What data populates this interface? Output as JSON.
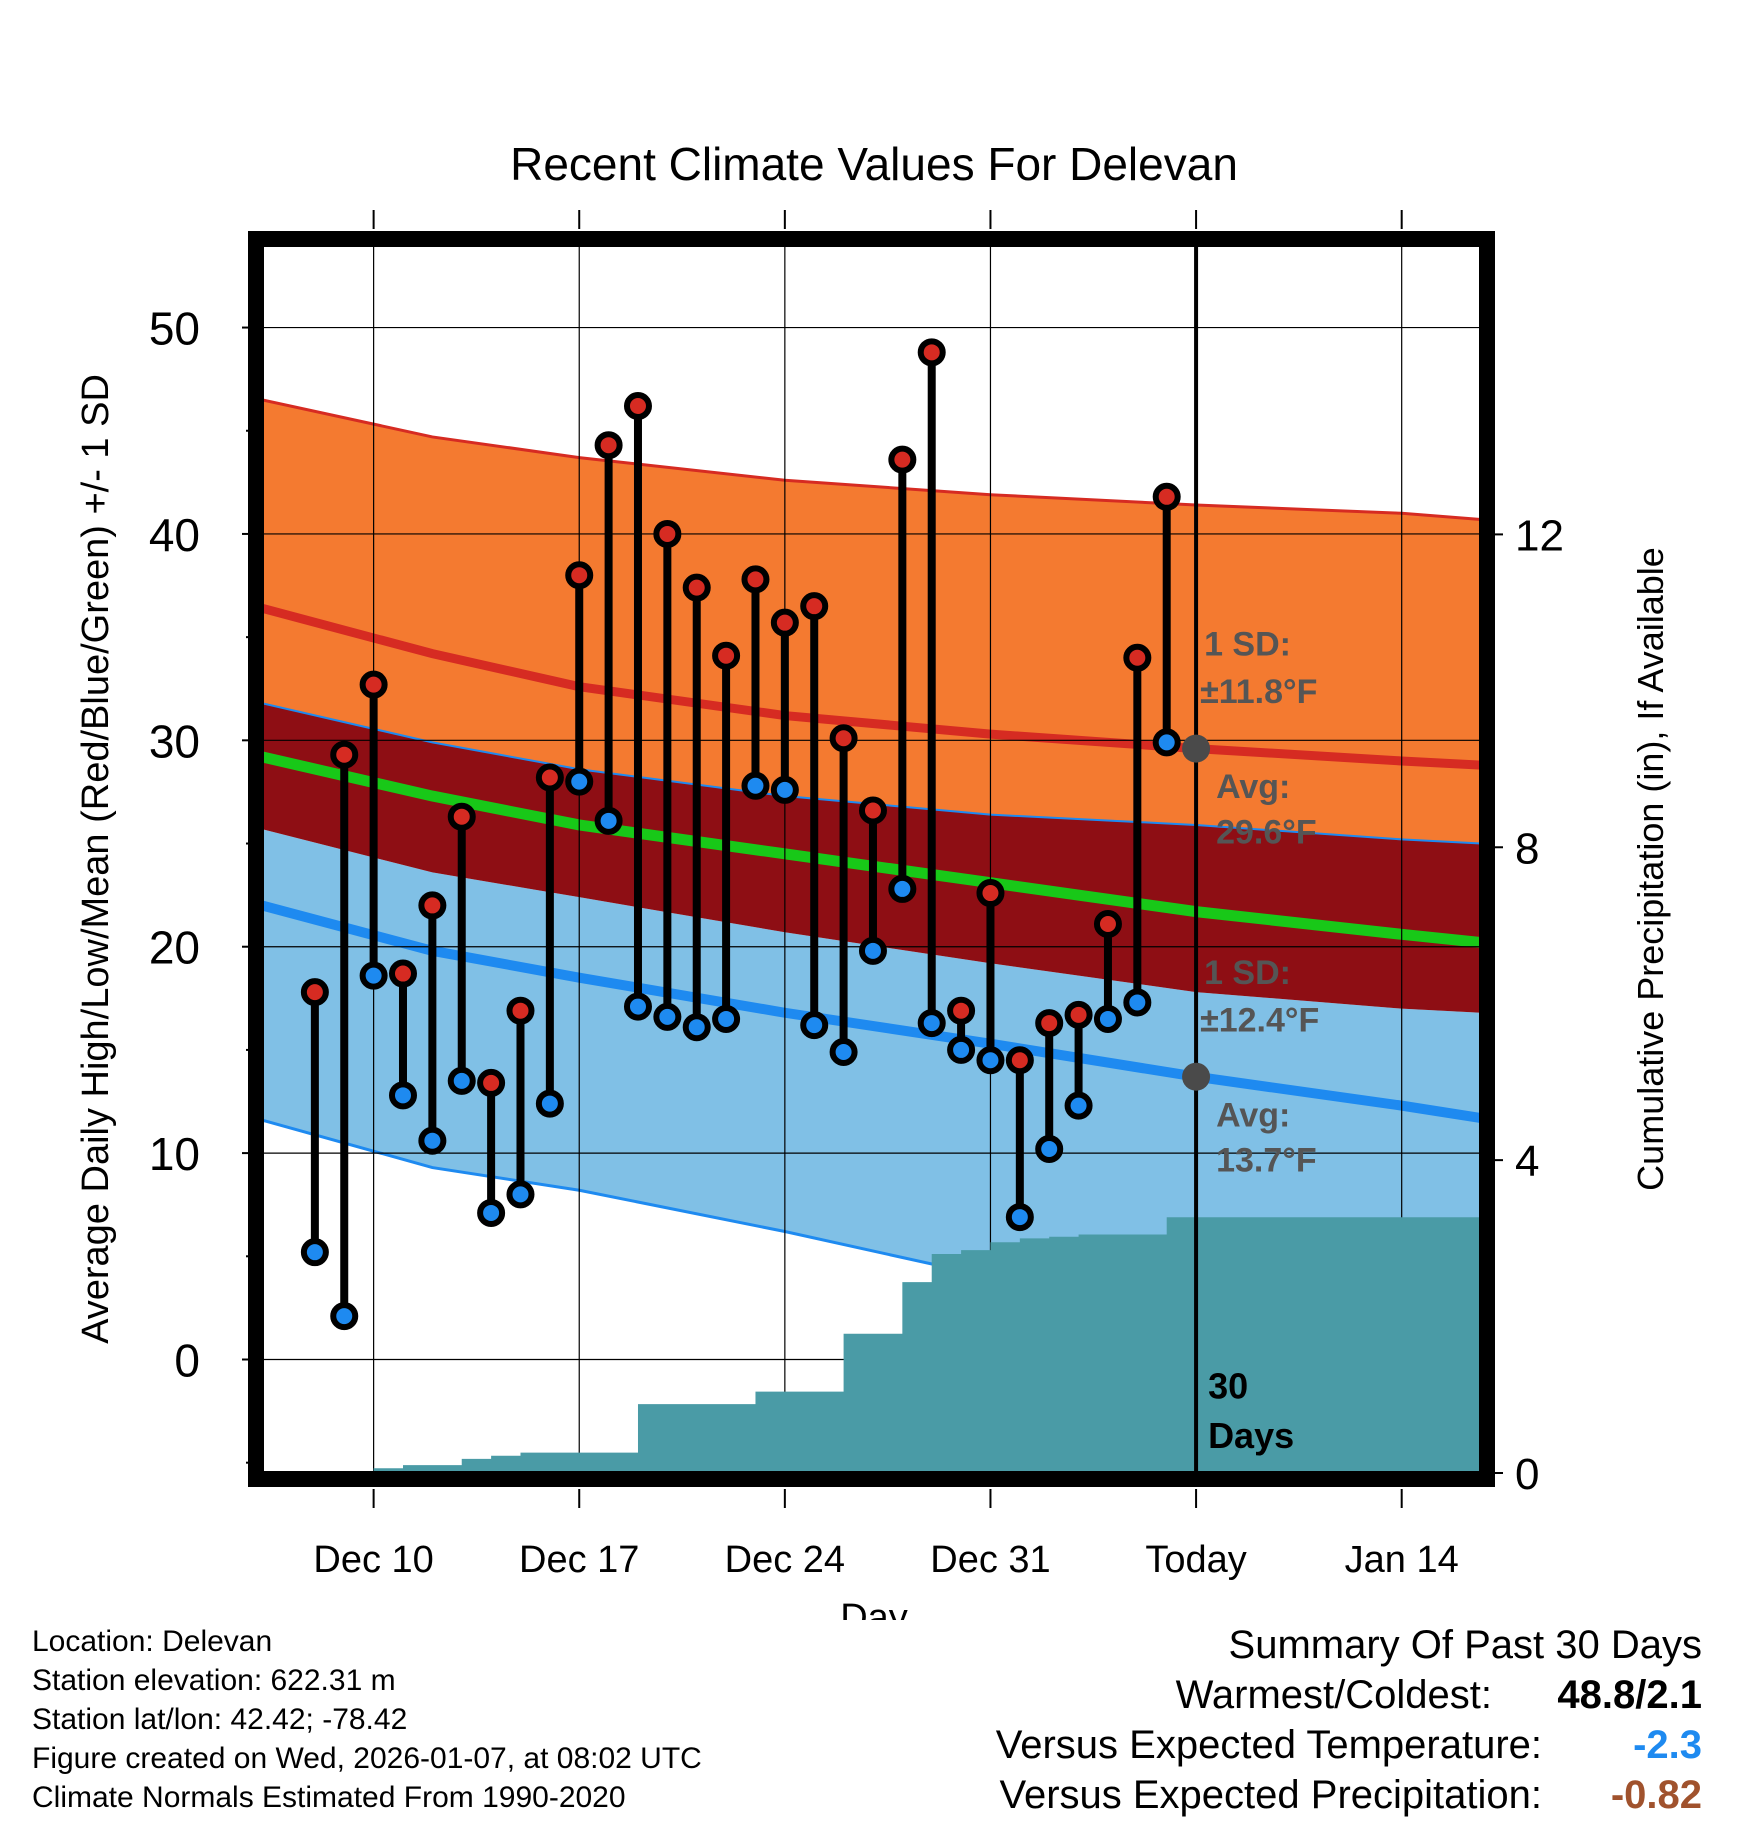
{
  "colors": {
    "high_band": "#F47A30",
    "high_line": "#D62B22",
    "mean_band": "#8E0E14",
    "mean_line": "#18C818",
    "low_band": "#80C0E6",
    "low_line": "#1E8AF0",
    "band_edge": "#1E8AF0",
    "precip_fill": "#4A9BA6",
    "high_dot": "#D62B22",
    "low_dot": "#1E8AF0",
    "avg_dot": "#4A4A4A",
    "annotation_text": "#555555",
    "vs_temp_color": "#1E8AF0",
    "vs_precip_color": "#A0522D"
  },
  "chart_data": {
    "type": "line",
    "title": "Recent Climate Values For Delevan",
    "xlabel": "Day",
    "ylabel": "Average Daily High/Low/Mean (Red/Blue/Green) +/- 1 SD",
    "y2label": "Cumulative Precipitation (in), If Available",
    "xlim": [
      -0.8,
      40.7
    ],
    "ylim": [
      -5.5,
      54
    ],
    "y2lim": [
      0,
      15.7
    ],
    "x_ticks": [
      {
        "x": 3,
        "label": "Dec 10"
      },
      {
        "x": 10,
        "label": "Dec 17"
      },
      {
        "x": 17,
        "label": "Dec 24"
      },
      {
        "x": 24,
        "label": "Dec 31"
      },
      {
        "x": 31,
        "label": "Today"
      },
      {
        "x": 38,
        "label": "Jan 14"
      }
    ],
    "y_ticks": [
      0,
      10,
      20,
      30,
      40,
      50
    ],
    "y2_ticks": [
      0,
      4,
      8,
      12
    ],
    "normals": {
      "x": [
        -0.8,
        5,
        10,
        17,
        24,
        31,
        38,
        40.7
      ],
      "high_plus_sd": [
        46.5,
        44.7,
        43.7,
        42.6,
        41.9,
        41.4,
        41.0,
        40.7
      ],
      "high_mean": [
        36.4,
        34.2,
        32.6,
        31.2,
        30.3,
        29.6,
        29.0,
        28.8
      ],
      "high_minus_sd": [
        31.8,
        29.9,
        28.6,
        27.3,
        26.4,
        25.9,
        25.2,
        25.0
      ],
      "mean": [
        29.2,
        27.3,
        25.9,
        24.5,
        23.1,
        21.7,
        20.6,
        20.2
      ],
      "low_plus_sd": [
        25.7,
        23.6,
        22.4,
        20.7,
        19.2,
        17.8,
        17.0,
        16.8
      ],
      "low_mean": [
        22.0,
        19.8,
        18.5,
        16.8,
        15.3,
        13.7,
        12.3,
        11.7
      ],
      "low_minus_sd": [
        11.6,
        9.3,
        8.2,
        6.2,
        4.0,
        1.2,
        -1.6,
        -2.8
      ]
    },
    "series": [
      {
        "name": "Daily High",
        "x": [
          1,
          2,
          3,
          4,
          5,
          6,
          7,
          8,
          9,
          10,
          11,
          12,
          13,
          14,
          15,
          16,
          17,
          18,
          19,
          20,
          21,
          22,
          23,
          24,
          25,
          26,
          27,
          28,
          29,
          30
        ],
        "values": [
          17.8,
          29.3,
          32.7,
          18.7,
          22.0,
          26.3,
          13.4,
          16.9,
          28.2,
          38.0,
          44.3,
          46.2,
          40.0,
          37.4,
          34.1,
          37.8,
          35.7,
          36.5,
          30.1,
          26.6,
          43.6,
          48.8,
          16.9,
          22.6,
          14.5,
          16.3,
          16.7,
          21.1,
          34.0,
          41.8
        ]
      },
      {
        "name": "Daily Low",
        "x": [
          1,
          2,
          3,
          4,
          5,
          6,
          7,
          8,
          9,
          10,
          11,
          12,
          13,
          14,
          15,
          16,
          17,
          18,
          19,
          20,
          21,
          22,
          23,
          24,
          25,
          26,
          27,
          28,
          29,
          30
        ],
        "values": [
          5.2,
          2.1,
          18.6,
          12.8,
          10.6,
          13.5,
          7.1,
          8.0,
          12.4,
          28.0,
          26.1,
          17.1,
          16.6,
          16.1,
          16.5,
          27.8,
          27.6,
          16.2,
          14.9,
          19.8,
          22.8,
          16.3,
          15.0,
          14.5,
          6.9,
          10.2,
          12.3,
          16.5,
          17.3,
          29.9
        ]
      },
      {
        "name": "Cumulative Precipitation",
        "x": [
          -0.8,
          2.5,
          3,
          4,
          5,
          6,
          7,
          8,
          9,
          10,
          11,
          12,
          13,
          14,
          15,
          16,
          17,
          18,
          19,
          20,
          21,
          22,
          23,
          24,
          25,
          26,
          27,
          28,
          29,
          30,
          31,
          40.7
        ],
        "values": [
          0,
          0,
          0.06,
          0.1,
          0.1,
          0.18,
          0.22,
          0.26,
          0.26,
          0.26,
          0.26,
          0.88,
          0.88,
          0.88,
          0.88,
          1.04,
          1.04,
          1.04,
          1.78,
          1.78,
          2.44,
          2.8,
          2.85,
          2.95,
          3.0,
          3.02,
          3.05,
          3.05,
          3.05,
          3.27,
          3.27,
          3.27
        ]
      }
    ],
    "avg_markers": [
      {
        "x": 31,
        "y": 29.6
      },
      {
        "x": 31,
        "y": 13.7
      }
    ],
    "annotations": {
      "high_sd_title": "1 SD:",
      "high_sd_value": "±11.8°F",
      "high_avg_title": "Avg:",
      "high_avg_value": "29.6°F",
      "low_sd_title": "1 SD:",
      "low_sd_value": "±12.4°F",
      "low_avg_title": "Avg:",
      "low_avg_value": "13.7°F",
      "days_number": "30",
      "days_word": "Days"
    }
  },
  "info": {
    "location": "Location: Delevan",
    "elevation": "Station elevation: 622.31 m",
    "latlon": "Station lat/lon: 42.42; -78.42",
    "created": "Figure created on Wed, 2026-01-07, at 08:02 UTC",
    "normals": "Climate Normals Estimated From 1990-2020"
  },
  "summary": {
    "title": "Summary Of Past 30 Days",
    "warmest_label": "Warmest/Coldest:",
    "warmest_value": "48.8/2.1",
    "vs_temp_label": "Versus Expected Temperature:",
    "vs_temp_value": "-2.3",
    "vs_precip_label": "Versus Expected Precipitation:",
    "vs_precip_value": "-0.82"
  }
}
